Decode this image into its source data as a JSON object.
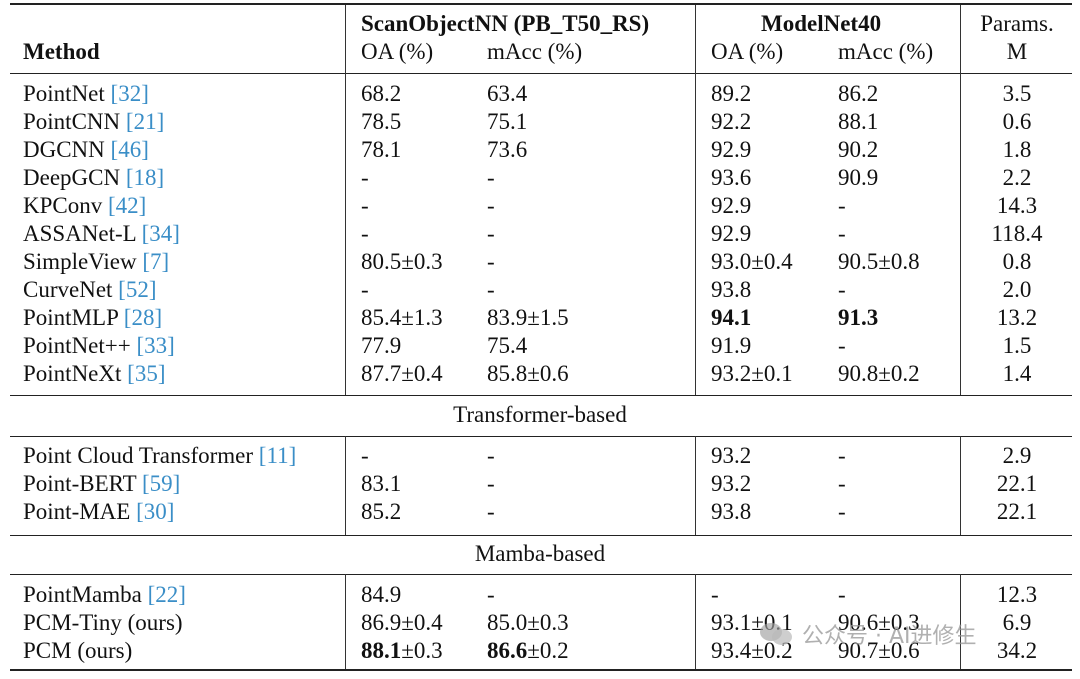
{
  "header": {
    "method": "Method",
    "group_scanobject": "ScanObjectNN (PB_T50_RS)",
    "group_modelnet": "ModelNet40",
    "params_line1": "Params.",
    "params_line2": "M",
    "oa": "OA (%)",
    "macc": "mAcc (%)"
  },
  "rows": [
    {
      "name": "PointNet",
      "ref": "32",
      "so_oa": "68.2",
      "so_macc": "63.4",
      "mn_oa": "89.2",
      "mn_macc": "86.2",
      "params": "3.5"
    },
    {
      "name": "PointCNN",
      "ref": "21",
      "so_oa": "78.5",
      "so_macc": "75.1",
      "mn_oa": "92.2",
      "mn_macc": "88.1",
      "params": "0.6"
    },
    {
      "name": "DGCNN",
      "ref": "46",
      "so_oa": "78.1",
      "so_macc": "73.6",
      "mn_oa": "92.9",
      "mn_macc": "90.2",
      "params": "1.8"
    },
    {
      "name": "DeepGCN",
      "ref": "18",
      "so_oa": "-",
      "so_macc": "-",
      "mn_oa": "93.6",
      "mn_macc": "90.9",
      "params": "2.2"
    },
    {
      "name": "KPConv",
      "ref": "42",
      "so_oa": "-",
      "so_macc": "-",
      "mn_oa": "92.9",
      "mn_macc": "-",
      "params": "14.3"
    },
    {
      "name": "ASSANet-L ",
      "ref": "34",
      "so_oa": "-",
      "so_macc": "-",
      "mn_oa": "92.9",
      "mn_macc": "-",
      "params": "118.4"
    },
    {
      "name": "SimpleView",
      "ref": "7",
      "so_oa": "80.5±0.3",
      "so_macc": "-",
      "mn_oa": "93.0±0.4",
      "mn_macc": "90.5±0.8",
      "params": "0.8"
    },
    {
      "name": "CurveNet",
      "ref": "52",
      "so_oa": "-",
      "so_macc": "-",
      "mn_oa": "93.8",
      "mn_macc": "-",
      "params": "2.0"
    },
    {
      "name": "PointMLP",
      "ref": "28",
      "so_oa": "85.4±1.3",
      "so_macc": "83.9±1.5",
      "mn_oa": "94.1",
      "mn_macc": "91.3",
      "params": "13.2"
    },
    {
      "name": "PointNet++",
      "ref": "33",
      "so_oa": "77.9",
      "so_macc": "75.4",
      "mn_oa": "91.9",
      "mn_macc": "-",
      "params": "1.5"
    },
    {
      "name": "PointNeXt",
      "ref": "35",
      "so_oa": "87.7±0.4",
      "so_macc": "85.8±0.6",
      "mn_oa": "93.2±0.1",
      "mn_macc": "90.8±0.2",
      "params": "1.4"
    }
  ],
  "section_transformer": "Transformer-based",
  "rows_transformer": [
    {
      "name": "Point Cloud Transformer",
      "ref": "11",
      "so_oa": "-",
      "so_macc": "-",
      "mn_oa": "93.2",
      "mn_macc": "-",
      "params": "2.9"
    },
    {
      "name": "Point-BERT",
      "ref": "59",
      "so_oa": "83.1",
      "so_macc": "-",
      "mn_oa": "93.2",
      "mn_macc": "-",
      "params": "22.1"
    },
    {
      "name": "Point-MAE",
      "ref": "30",
      "so_oa": "85.2",
      "so_macc": "-",
      "mn_oa": "93.8",
      "mn_macc": "-",
      "params": "22.1"
    }
  ],
  "section_mamba": "Mamba-based",
  "rows_mamba": [
    {
      "name": "PointMamba",
      "ref": "22",
      "so_oa": "84.9",
      "so_macc": "-",
      "mn_oa": "-",
      "mn_macc": "-",
      "params": "12.3"
    },
    {
      "name": "PCM-Tiny (ours)",
      "ref": "",
      "so_oa": "86.9±0.4",
      "so_macc": "85.0±0.3",
      "mn_oa": "93.1±0.1",
      "mn_macc": "90.6±0.3",
      "params": "6.9"
    },
    {
      "name": "PCM (ours)",
      "ref": "",
      "so_oa_bold": "88.1",
      "so_oa_rest": "±0.3",
      "so_macc_bold": "86.6",
      "so_macc_rest": "±0.2",
      "mn_oa": "93.4±0.2",
      "mn_macc": "90.7±0.6",
      "params": "34.2"
    }
  ],
  "watermark": {
    "text": "公众号 · AI进修生",
    "icon": "wechat-icon"
  }
}
